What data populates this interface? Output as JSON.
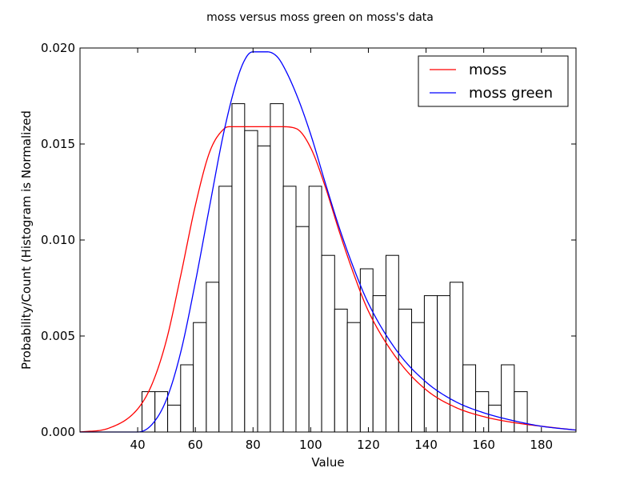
{
  "chart_data": {
    "type": "histogram",
    "title": "moss versus moss green on moss's data",
    "xlabel": "Value",
    "ylabel": "Probability/Count (Histogram is Normalized",
    "xlim": [
      20,
      192
    ],
    "ylim": [
      0,
      0.02
    ],
    "xticks": [
      40,
      60,
      80,
      100,
      120,
      140,
      160,
      180
    ],
    "yticks": [
      0.0,
      0.005,
      0.01,
      0.015,
      0.02
    ],
    "ytick_labels": [
      "0.000",
      "0.005",
      "0.010",
      "0.015",
      "0.020"
    ],
    "grid": false,
    "legend_position": "top-right",
    "histogram": {
      "bin_edges": [
        41.5,
        46.0,
        50.4,
        54.9,
        59.3,
        63.8,
        68.2,
        72.7,
        77.1,
        81.6,
        86.0,
        90.5,
        94.9,
        99.4,
        103.8,
        108.3,
        112.7,
        117.2,
        121.6,
        126.1,
        130.5,
        135.0,
        139.4,
        143.9,
        148.3,
        152.8,
        157.2,
        161.7,
        166.1,
        170.6
      ],
      "values": [
        0.0021,
        0.0021,
        0.0014,
        0.0035,
        0.0057,
        0.0078,
        0.0128,
        0.0171,
        0.0157,
        0.0149,
        0.0171,
        0.0128,
        0.0107,
        0.0128,
        0.0092,
        0.0064,
        0.0057,
        0.0085,
        0.0071,
        0.0092,
        0.0064,
        0.0057,
        0.0071,
        0.0071,
        0.0078,
        0.0035,
        0.0021,
        0.0014,
        0.0035,
        0.0021
      ]
    },
    "series": [
      {
        "name": "moss",
        "color": "#ff0000",
        "x": [
          20,
          30,
          40,
          45,
          50,
          55,
          60,
          65,
          70,
          72,
          75,
          80,
          90,
          95,
          100,
          105,
          110,
          115,
          120,
          130,
          140,
          150,
          160,
          170,
          180,
          192
        ],
        "y": [
          0.0,
          0.0002,
          0.0012,
          0.0025,
          0.0048,
          0.0082,
          0.0118,
          0.0146,
          0.0158,
          0.0159,
          0.0159,
          0.0159,
          0.0159,
          0.0158,
          0.0148,
          0.0128,
          0.0104,
          0.0082,
          0.0063,
          0.0038,
          0.0022,
          0.0013,
          0.0008,
          0.0005,
          0.0003,
          0.0001
        ]
      },
      {
        "name": "moss green",
        "color": "#0000ff",
        "x": [
          20,
          40,
          45,
          50,
          55,
          60,
          65,
          70,
          75,
          78,
          80,
          85,
          88,
          90,
          95,
          100,
          105,
          110,
          115,
          120,
          130,
          140,
          150,
          160,
          170,
          180,
          192
        ],
        "y": [
          0.0,
          0.0,
          0.0004,
          0.0017,
          0.0042,
          0.0078,
          0.0118,
          0.0157,
          0.0186,
          0.0196,
          0.0198,
          0.0198,
          0.0196,
          0.0192,
          0.0176,
          0.0155,
          0.013,
          0.0106,
          0.0085,
          0.0067,
          0.0042,
          0.0026,
          0.0016,
          0.001,
          0.0006,
          0.0003,
          0.0001
        ]
      }
    ]
  }
}
